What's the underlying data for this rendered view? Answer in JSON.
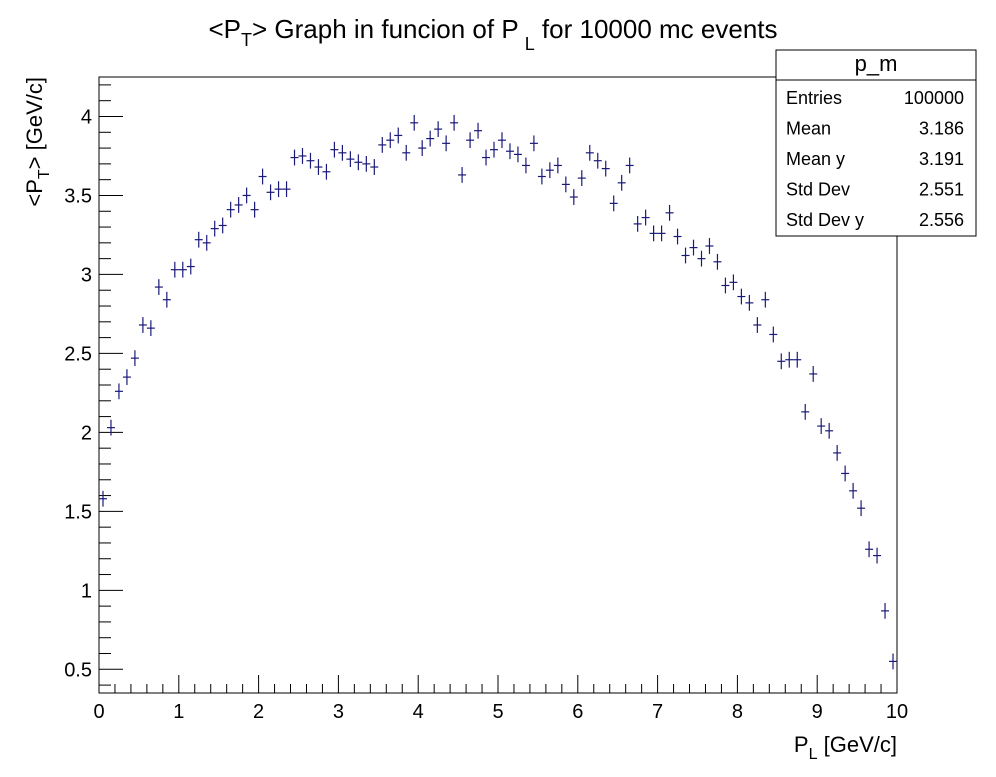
{
  "chart_data": {
    "type": "scatter",
    "title": {
      "main": "<P",
      "sub": "T",
      "middle": "> Graph in funcion of P",
      "sub2": "L",
      "end": " for 10000 mc events"
    },
    "xlabel": {
      "main": "P",
      "sub": "L",
      "unit": " [GeV/c]"
    },
    "ylabel": {
      "main": "<P",
      "sub": "T",
      "unit": "> [GeV/c]"
    },
    "xlim": [
      0,
      10
    ],
    "ylim": [
      0.35,
      4.25
    ],
    "x_ticks": [
      "0",
      "1",
      "2",
      "3",
      "4",
      "5",
      "6",
      "7",
      "8",
      "9",
      "10"
    ],
    "y_ticks": [
      {
        "value": 0.5,
        "label": "0.5"
      },
      {
        "value": 1,
        "label": "1"
      },
      {
        "value": 1.5,
        "label": "1.5"
      },
      {
        "value": 2,
        "label": "2"
      },
      {
        "value": 2.5,
        "label": "2.5"
      },
      {
        "value": 3,
        "label": "3"
      },
      {
        "value": 3.5,
        "label": "3.5"
      },
      {
        "value": 4,
        "label": "4"
      }
    ],
    "grid": false,
    "marker_color": "#1a1a7a",
    "bin_width": 0.1,
    "stats_box": {
      "title": "p_m",
      "rows": [
        {
          "label": "Entries",
          "value": "100000"
        },
        {
          "label": "Mean",
          "value": "3.186"
        },
        {
          "label": "Mean y",
          "value": "3.191"
        },
        {
          "label": "Std Dev",
          "value": "2.551"
        },
        {
          "label": "Std Dev y",
          "value": "2.556"
        }
      ]
    },
    "series": [
      {
        "x": [
          0.05,
          0.15,
          0.25,
          0.35,
          0.45,
          0.55,
          0.65,
          0.75,
          0.85,
          0.95,
          1.05,
          1.15,
          1.25,
          1.35,
          1.45,
          1.55,
          1.65,
          1.75,
          1.85,
          1.95,
          2.05,
          2.15,
          2.25,
          2.35,
          2.45,
          2.55,
          2.65,
          2.75,
          2.85,
          2.95,
          3.05,
          3.15,
          3.25,
          3.35,
          3.45,
          3.55,
          3.65,
          3.75,
          3.85,
          3.95,
          4.05,
          4.15,
          4.25,
          4.35,
          4.45,
          4.55,
          4.65,
          4.75,
          4.85,
          4.95,
          5.05,
          5.15,
          5.25,
          5.35,
          5.45,
          5.55,
          5.65,
          5.75,
          5.85,
          5.95,
          6.05,
          6.15,
          6.25,
          6.35,
          6.45,
          6.55,
          6.65,
          6.75,
          6.85,
          6.95,
          7.05,
          7.15,
          7.25,
          7.35,
          7.45,
          7.55,
          7.65,
          7.75,
          7.85,
          7.95,
          8.05,
          8.15,
          8.25,
          8.35,
          8.45,
          8.55,
          8.65,
          8.75,
          8.85,
          8.95,
          9.05,
          9.15,
          9.25,
          9.35,
          9.45,
          9.55,
          9.65,
          9.75,
          9.85,
          9.95
        ],
        "y": [
          1.58,
          2.03,
          2.26,
          2.35,
          2.47,
          2.68,
          2.66,
          2.92,
          2.84,
          3.03,
          3.03,
          3.05,
          3.22,
          3.2,
          3.29,
          3.31,
          3.41,
          3.44,
          3.5,
          3.41,
          3.62,
          3.52,
          3.54,
          3.54,
          3.74,
          3.75,
          3.72,
          3.68,
          3.65,
          3.79,
          3.77,
          3.73,
          3.71,
          3.7,
          3.68,
          3.82,
          3.85,
          3.88,
          3.77,
          3.96,
          3.8,
          3.86,
          3.92,
          3.83,
          3.96,
          3.63,
          3.85,
          3.91,
          3.74,
          3.79,
          3.85,
          3.78,
          3.76,
          3.69,
          3.83,
          3.62,
          3.66,
          3.69,
          3.57,
          3.49,
          3.61,
          3.77,
          3.72,
          3.67,
          3.45,
          3.58,
          3.69,
          3.32,
          3.36,
          3.26,
          3.26,
          3.39,
          3.24,
          3.12,
          3.17,
          3.1,
          3.18,
          3.08,
          2.93,
          2.95,
          2.86,
          2.82,
          2.68,
          2.84,
          2.62,
          2.45,
          2.46,
          2.46,
          2.13,
          2.37,
          2.04,
          2.01,
          1.87,
          1.74,
          1.63,
          1.52,
          1.26,
          1.22,
          0.87,
          0.55
        ],
        "yerr": [
          0.05,
          0.05,
          0.05,
          0.05,
          0.05,
          0.05,
          0.05,
          0.05,
          0.05,
          0.05,
          0.05,
          0.05,
          0.05,
          0.05,
          0.05,
          0.05,
          0.05,
          0.05,
          0.05,
          0.05,
          0.05,
          0.05,
          0.05,
          0.05,
          0.05,
          0.05,
          0.05,
          0.05,
          0.05,
          0.05,
          0.05,
          0.05,
          0.05,
          0.05,
          0.05,
          0.05,
          0.05,
          0.05,
          0.05,
          0.05,
          0.05,
          0.05,
          0.05,
          0.05,
          0.05,
          0.05,
          0.05,
          0.05,
          0.05,
          0.05,
          0.05,
          0.05,
          0.05,
          0.05,
          0.05,
          0.05,
          0.05,
          0.05,
          0.05,
          0.05,
          0.05,
          0.05,
          0.05,
          0.05,
          0.05,
          0.05,
          0.05,
          0.05,
          0.05,
          0.05,
          0.05,
          0.05,
          0.05,
          0.05,
          0.05,
          0.05,
          0.05,
          0.05,
          0.05,
          0.05,
          0.05,
          0.05,
          0.05,
          0.05,
          0.05,
          0.05,
          0.05,
          0.05,
          0.05,
          0.05,
          0.05,
          0.05,
          0.05,
          0.05,
          0.05,
          0.05,
          0.05,
          0.05,
          0.05,
          0.05
        ]
      }
    ]
  }
}
